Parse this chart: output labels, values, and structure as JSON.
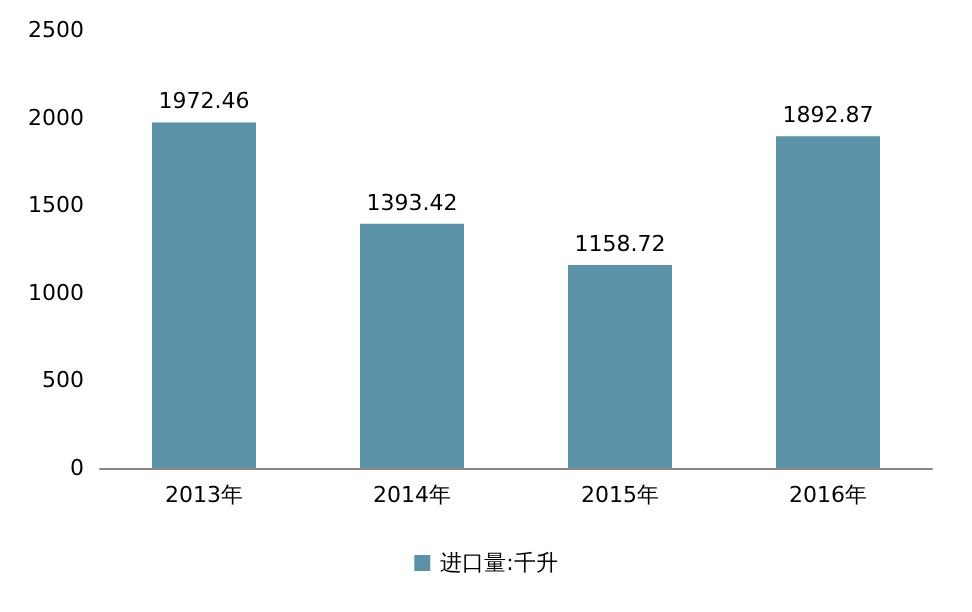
{
  "chart_data": {
    "type": "bar",
    "categories": [
      "2013年",
      "2014年",
      "2015年",
      "2016年"
    ],
    "series": [
      {
        "name": "进口量:千升",
        "color": "#5b92a8",
        "values": [
          1972.46,
          1393.42,
          1158.72,
          1892.87
        ]
      }
    ],
    "ylim": [
      0,
      2500
    ],
    "yticks": [
      0,
      500,
      1000,
      1500,
      2000,
      2500
    ],
    "data_labels": true,
    "legend": "bottom"
  }
}
